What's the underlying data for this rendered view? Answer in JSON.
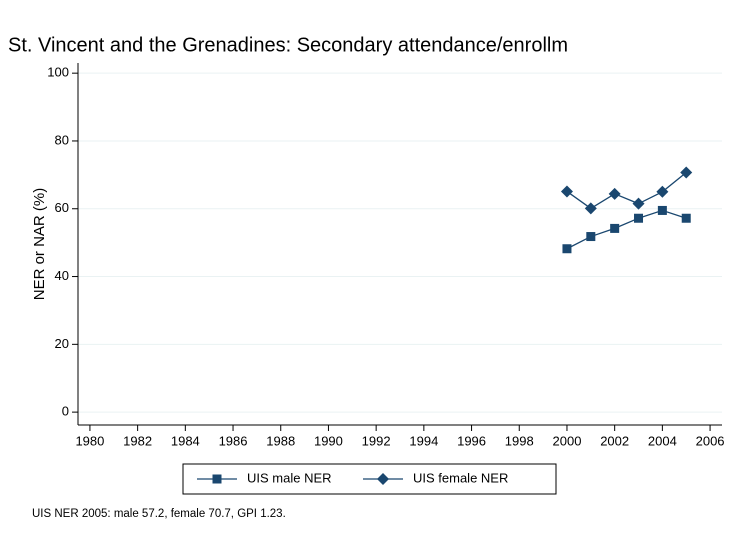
{
  "chart_data": {
    "type": "line",
    "title": "St. Vincent and the Grenadines: Secondary attendance/enrollm",
    "y_label": "NER or NAR (%)",
    "note": "UIS NER 2005: male 57.2, female 70.7, GPI 1.23.",
    "x": [
      2000,
      2001,
      2002,
      2003,
      2004,
      2005
    ],
    "series": [
      {
        "name": "UIS male NER",
        "color": "#1a476f",
        "marker": "square",
        "values": [
          48.2,
          51.8,
          54.2,
          57.2,
          59.5,
          57.2
        ]
      },
      {
        "name": "UIS female NER",
        "color": "#1a476f",
        "marker": "diamond",
        "values": [
          65.1,
          60.1,
          64.4,
          61.5,
          65.0,
          70.7
        ]
      }
    ],
    "xlim": [
      1979.5,
      2006.5
    ],
    "xticks": [
      1980,
      1982,
      1984,
      1986,
      1988,
      1990,
      1992,
      1994,
      1996,
      1998,
      2000,
      2002,
      2004,
      2006
    ],
    "ylim": [
      -3.8,
      103
    ],
    "yticks": [
      0,
      20,
      40,
      60,
      80,
      100
    ],
    "grid": true,
    "legend": "bottom"
  }
}
